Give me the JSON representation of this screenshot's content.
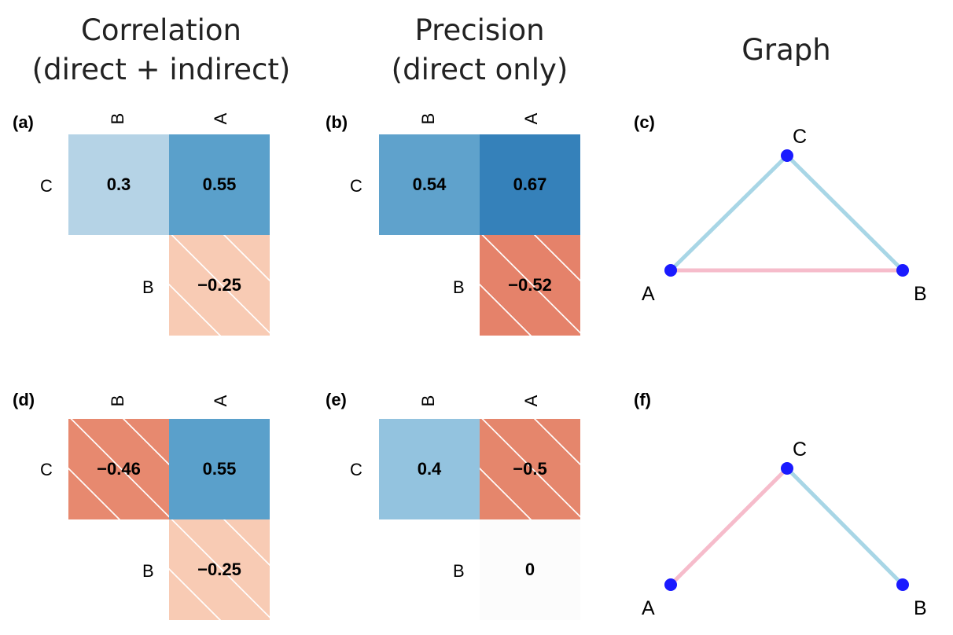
{
  "columns": [
    {
      "line1": "Correlation",
      "line2": "(direct + indirect)"
    },
    {
      "line1": "Precision",
      "line2": "(direct only)"
    },
    {
      "line1": "Graph",
      "line2": ""
    }
  ],
  "colors": {
    "blue_light": "#b5d3e6",
    "blue_mid": "#5aa0cb",
    "blue_dark": "#3581ba",
    "blue_pale": "#93c3df",
    "red_light": "#f8cbb4",
    "red_mid": "#e5826a",
    "red_dark": "#e27c61",
    "near_white": "#fcfcfc",
    "edge_blue": "#a8d6e6",
    "edge_pink": "#f6bccb",
    "node": "#1a1aff"
  },
  "panels": [
    {
      "label": "(a)",
      "col_labels": [
        "B",
        "A"
      ],
      "row_labels": [
        "C",
        "B"
      ],
      "cells": [
        {
          "value": "0.3",
          "color": "#b5d3e6",
          "hatched": false
        },
        {
          "value": "0.55",
          "color": "#5aa0cb",
          "hatched": false
        },
        {
          "value": "−0.25",
          "color": "#f8cbb4",
          "hatched": true
        }
      ]
    },
    {
      "label": "(b)",
      "col_labels": [
        "B",
        "A"
      ],
      "row_labels": [
        "C",
        "B"
      ],
      "cells": [
        {
          "value": "0.54",
          "color": "#5fa2cc",
          "hatched": false
        },
        {
          "value": "0.67",
          "color": "#3581ba",
          "hatched": false
        },
        {
          "value": "−0.52",
          "color": "#e5826a",
          "hatched": true
        }
      ]
    },
    {
      "label": "(d)",
      "col_labels": [
        "B",
        "A"
      ],
      "row_labels": [
        "C",
        "B"
      ],
      "cells": [
        {
          "value": "−0.46",
          "color": "#e7896f",
          "hatched": true
        },
        {
          "value": "0.55",
          "color": "#5aa0cb",
          "hatched": false
        },
        {
          "value": "−0.25",
          "color": "#f8cbb4",
          "hatched": true
        }
      ]
    },
    {
      "label": "(e)",
      "col_labels": [
        "B",
        "A"
      ],
      "row_labels": [
        "C",
        "B"
      ],
      "cells": [
        {
          "value": "0.4",
          "color": "#93c3df",
          "hatched": false
        },
        {
          "value": "−0.5",
          "color": "#e5866c",
          "hatched": true
        },
        {
          "value": "0",
          "color": "#fcfcfc",
          "hatched": false
        }
      ]
    }
  ],
  "graphs": [
    {
      "label": "(c)",
      "nodes": [
        "A",
        "B",
        "C"
      ],
      "edges": [
        {
          "from": "A",
          "to": "C",
          "sign": "positive"
        },
        {
          "from": "B",
          "to": "C",
          "sign": "positive"
        },
        {
          "from": "A",
          "to": "B",
          "sign": "negative"
        }
      ]
    },
    {
      "label": "(f)",
      "nodes": [
        "A",
        "B",
        "C"
      ],
      "edges": [
        {
          "from": "A",
          "to": "C",
          "sign": "negative"
        },
        {
          "from": "B",
          "to": "C",
          "sign": "positive"
        }
      ]
    }
  ]
}
